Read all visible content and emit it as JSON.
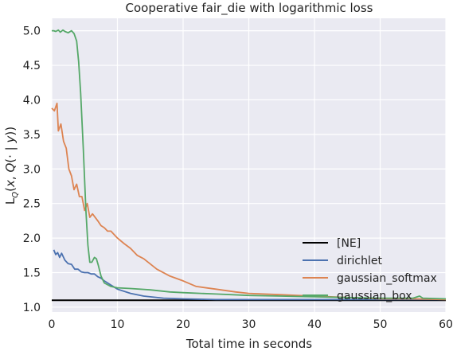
{
  "chart_data": {
    "type": "line",
    "title": "Cooperative fair_die with logarithmic loss",
    "xlabel": "Total time in seconds",
    "ylabel": "L_Q(x, Q(· | y))",
    "xlim": [
      0,
      60
    ],
    "ylim": [
      0.93,
      5.18
    ],
    "xticks": [
      0,
      10,
      20,
      30,
      40,
      50,
      60
    ],
    "yticks": [
      1.0,
      1.5,
      2.0,
      2.5,
      3.0,
      3.5,
      4.0,
      4.5,
      5.0
    ],
    "xtick_labels": [
      "0",
      "10",
      "20",
      "30",
      "40",
      "50",
      "60"
    ],
    "ytick_labels": [
      "1.0",
      "1.5",
      "2.0",
      "2.5",
      "3.0",
      "3.5",
      "4.0",
      "4.5",
      "5.0"
    ],
    "grid": true,
    "legend_position": "lower-right",
    "reference_line": {
      "name": "[NE]",
      "y": 1.1,
      "color": "#000000"
    },
    "series": [
      {
        "name": "dirichlet",
        "color": "#4c72b0",
        "x": [
          0.3,
          0.6,
          0.9,
          1.2,
          1.5,
          2,
          2.5,
          3,
          3.5,
          4,
          4.5,
          5,
          5.5,
          6,
          6.5,
          7,
          7.5,
          8,
          9,
          10,
          12,
          14,
          17,
          20,
          25,
          30,
          40,
          50,
          60
        ],
        "y": [
          1.83,
          1.76,
          1.79,
          1.72,
          1.78,
          1.68,
          1.63,
          1.62,
          1.55,
          1.55,
          1.51,
          1.5,
          1.5,
          1.48,
          1.48,
          1.44,
          1.42,
          1.38,
          1.32,
          1.26,
          1.2,
          1.16,
          1.13,
          1.12,
          1.11,
          1.11,
          1.11,
          1.11,
          1.11
        ]
      },
      {
        "name": "gaussian_softmax",
        "color": "#dd8452",
        "x": [
          0,
          0.4,
          0.8,
          1,
          1.4,
          1.8,
          2.2,
          2.6,
          3,
          3.4,
          3.8,
          4.2,
          4.6,
          5,
          5.4,
          5.8,
          6.2,
          6.6,
          7,
          7.5,
          8,
          8.5,
          9,
          9.5,
          10,
          11,
          12,
          13,
          14,
          16,
          18,
          20,
          22,
          25,
          28,
          30,
          35,
          40,
          45,
          50,
          55,
          60
        ],
        "y": [
          3.88,
          3.84,
          3.95,
          3.55,
          3.65,
          3.4,
          3.3,
          3.0,
          2.9,
          2.7,
          2.78,
          2.6,
          2.6,
          2.4,
          2.5,
          2.3,
          2.35,
          2.3,
          2.25,
          2.18,
          2.15,
          2.1,
          2.1,
          2.05,
          2.0,
          1.92,
          1.85,
          1.75,
          1.7,
          1.55,
          1.45,
          1.38,
          1.3,
          1.26,
          1.22,
          1.2,
          1.18,
          1.16,
          1.14,
          1.12,
          1.12,
          1.11
        ]
      },
      {
        "name": "gaussian_box",
        "color": "#55a868",
        "x": [
          0,
          0.3,
          0.6,
          1,
          1.3,
          1.7,
          2,
          2.5,
          3,
          3.4,
          3.8,
          4.1,
          4.4,
          4.8,
          5.2,
          5.5,
          5.8,
          6.1,
          6.5,
          6.8,
          7.1,
          7.5,
          8,
          9,
          10,
          12,
          15,
          18,
          20,
          25,
          30,
          35,
          40,
          45,
          50,
          55,
          56,
          56.5,
          60
        ],
        "y": [
          5.0,
          5.0,
          4.99,
          5.01,
          4.98,
          5.01,
          4.99,
          4.97,
          5.0,
          4.96,
          4.85,
          4.55,
          4.1,
          3.3,
          2.4,
          1.9,
          1.65,
          1.65,
          1.72,
          1.7,
          1.6,
          1.45,
          1.35,
          1.3,
          1.28,
          1.27,
          1.25,
          1.22,
          1.21,
          1.19,
          1.17,
          1.16,
          1.15,
          1.14,
          1.13,
          1.13,
          1.16,
          1.13,
          1.12
        ]
      }
    ]
  }
}
